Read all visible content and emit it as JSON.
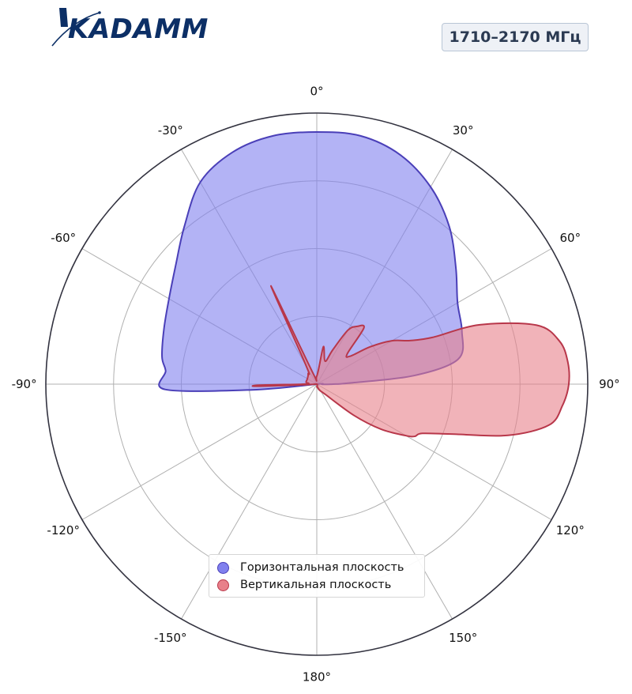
{
  "logo": {
    "text": "KADAMM"
  },
  "band_label": "1710–2170 МГц",
  "colors": {
    "horizontal_fill": "#8080ee",
    "horizontal_stroke": "#4a3fb8",
    "vertical_fill": "#e8808a",
    "vertical_stroke": "#b8374a",
    "grid": "#b0b0b0",
    "outer_ring": "#333340"
  },
  "chart_data": {
    "type": "polar",
    "theta_zero": "top",
    "theta_direction": "clockwise",
    "rmax": 1.0,
    "grid": true,
    "legend_position": "bottom-center",
    "theta_ticks": [
      "0°",
      "30°",
      "60°",
      "90°",
      "120°",
      "150°",
      "180°",
      "-150°",
      "-120°",
      "-90°",
      "-60°",
      "-30°"
    ],
    "series": [
      {
        "name": "Горизонтальная плоскость",
        "angles": [
          -95,
          -92,
          -85,
          -80,
          -70,
          -60,
          -50,
          -40,
          -30,
          -20,
          -10,
          0,
          10,
          20,
          30,
          40,
          50,
          60,
          70,
          80,
          85,
          88,
          90,
          92
        ],
        "values": [
          0.24,
          0.56,
          0.56,
          0.58,
          0.6,
          0.63,
          0.68,
          0.76,
          0.86,
          0.91,
          0.93,
          0.93,
          0.93,
          0.9,
          0.84,
          0.76,
          0.67,
          0.6,
          0.57,
          0.53,
          0.36,
          0.12,
          0.06,
          0.02
        ]
      },
      {
        "name": "Вертикальная плоскость",
        "angles": [
          -93,
          -92,
          -91,
          -90,
          -85,
          -80,
          -60,
          -40,
          -30,
          -25,
          -20,
          0,
          10,
          20,
          25,
          30,
          35,
          40,
          45,
          50,
          55,
          60,
          65,
          68,
          70,
          75,
          80,
          85,
          90,
          95,
          100,
          105,
          110,
          115,
          118,
          120,
          125,
          130,
          140,
          150,
          160,
          170,
          180
        ],
        "values": [
          0.03,
          0.22,
          0.21,
          0.05,
          0.03,
          0.04,
          0.04,
          0.05,
          0.08,
          0.4,
          0.05,
          0.03,
          0.14,
          0.09,
          0.14,
          0.23,
          0.26,
          0.27,
          0.16,
          0.16,
          0.24,
          0.32,
          0.38,
          0.46,
          0.64,
          0.84,
          0.91,
          0.93,
          0.93,
          0.91,
          0.87,
          0.73,
          0.54,
          0.43,
          0.41,
          0.38,
          0.29,
          0.18,
          0.05,
          0.03,
          0.02,
          0.01,
          0.01
        ]
      }
    ]
  }
}
